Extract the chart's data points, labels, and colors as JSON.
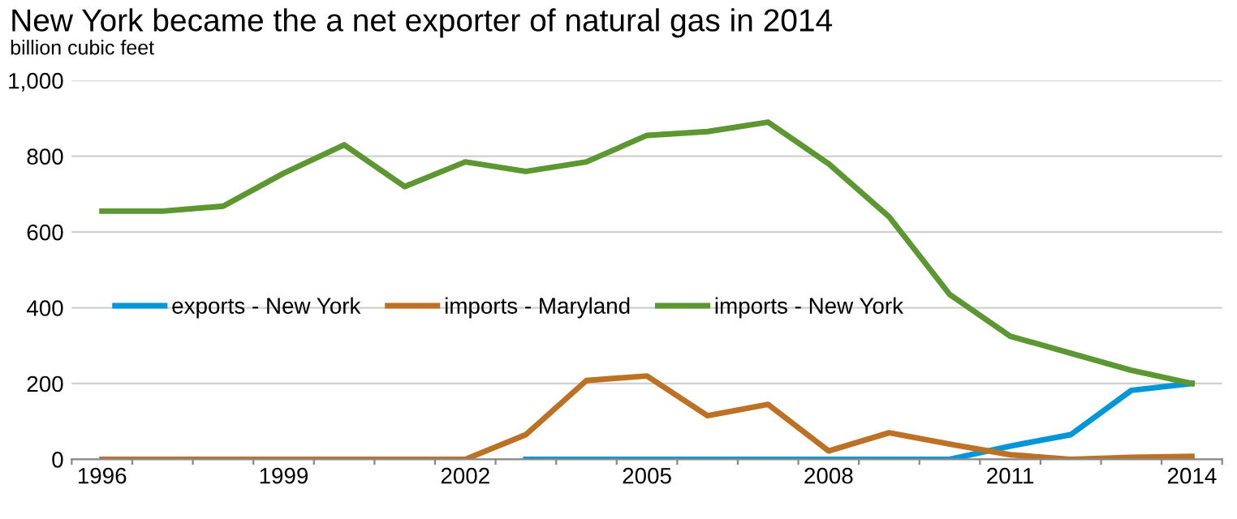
{
  "chart_data": {
    "type": "line",
    "title": "New York became the a net exporter of natural gas in 2014",
    "subtitle": "billion cubic feet",
    "categories": [
      "1996",
      null,
      null,
      "1999",
      null,
      null,
      "2002",
      null,
      null,
      "2005",
      null,
      null,
      "2008",
      null,
      null,
      "2011",
      null,
      null,
      "2014"
    ],
    "series": [
      {
        "name": "exports - New York",
        "color": "#0096d7",
        "values": [
          null,
          null,
          null,
          null,
          null,
          null,
          null,
          0,
          0,
          0,
          0,
          0,
          0,
          0,
          0,
          35,
          65,
          182,
          200
        ]
      },
      {
        "name": "imports - Maryland",
        "color": "#bd7125",
        "values": [
          0,
          0,
          0,
          0,
          0,
          0,
          0,
          65,
          208,
          220,
          115,
          145,
          22,
          70,
          40,
          12,
          0,
          5,
          8
        ]
      },
      {
        "name": "imports - New York",
        "color": "#5d9732",
        "values": [
          655,
          655,
          668,
          755,
          830,
          720,
          785,
          760,
          785,
          855,
          865,
          890,
          780,
          640,
          435,
          325,
          280,
          235,
          200
        ]
      }
    ],
    "ylim": [
      0,
      1000
    ],
    "yticks": [
      0,
      200,
      400,
      600,
      800,
      {
        "value": 1000,
        "label": "1,000"
      }
    ],
    "grid": "y",
    "legend": "left",
    "marker": "none",
    "line_style": "solid"
  }
}
